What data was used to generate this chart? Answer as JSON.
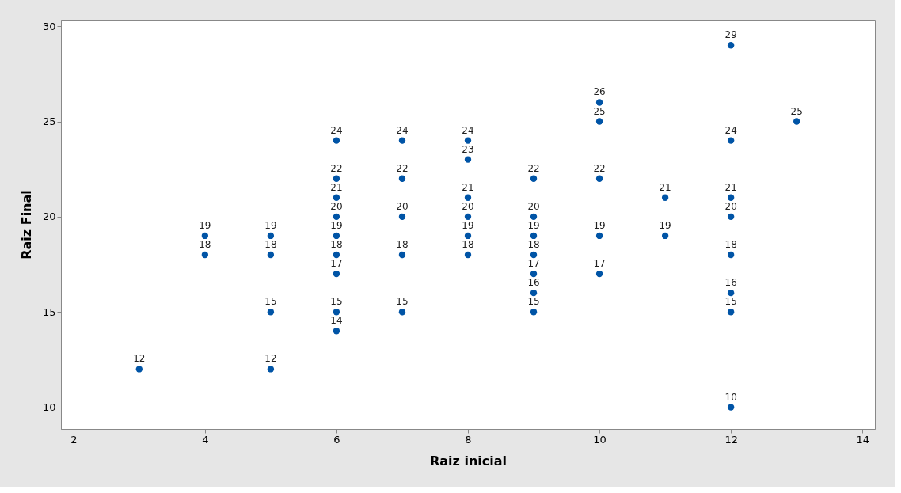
{
  "chart_data": {
    "type": "scatter",
    "xlabel": "Raiz inicial",
    "ylabel": "Raiz Final",
    "x": [
      3,
      4,
      4,
      5,
      5,
      5,
      5,
      6,
      6,
      6,
      6,
      6,
      6,
      6,
      6,
      6,
      7,
      7,
      7,
      7,
      7,
      8,
      8,
      8,
      8,
      8,
      8,
      9,
      9,
      9,
      9,
      9,
      9,
      9,
      10,
      10,
      10,
      10,
      10,
      11,
      11,
      12,
      12,
      12,
      12,
      12,
      12,
      12,
      12,
      13
    ],
    "series": [
      {
        "color": "#0054a6",
        "values": [
          12,
          19,
          18,
          19,
          18,
          15,
          12,
          24,
          22,
          21,
          20,
          19,
          18,
          17,
          15,
          14,
          24,
          22,
          20,
          18,
          15,
          24,
          23,
          21,
          20,
          19,
          18,
          22,
          20,
          19,
          18,
          17,
          16,
          15,
          26,
          25,
          22,
          19,
          17,
          21,
          19,
          29,
          24,
          21,
          20,
          18,
          16,
          15,
          10,
          25
        ]
      }
    ],
    "xlim": [
      1.81,
      14.19
    ],
    "ylim": [
      8.86,
      30.34
    ],
    "xticks": [
      2,
      4,
      6,
      8,
      10,
      12,
      14
    ],
    "yticks": [
      10,
      15,
      20,
      25,
      30
    ],
    "data_labels": true,
    "marker": "circle",
    "grid": false,
    "legend": false
  }
}
